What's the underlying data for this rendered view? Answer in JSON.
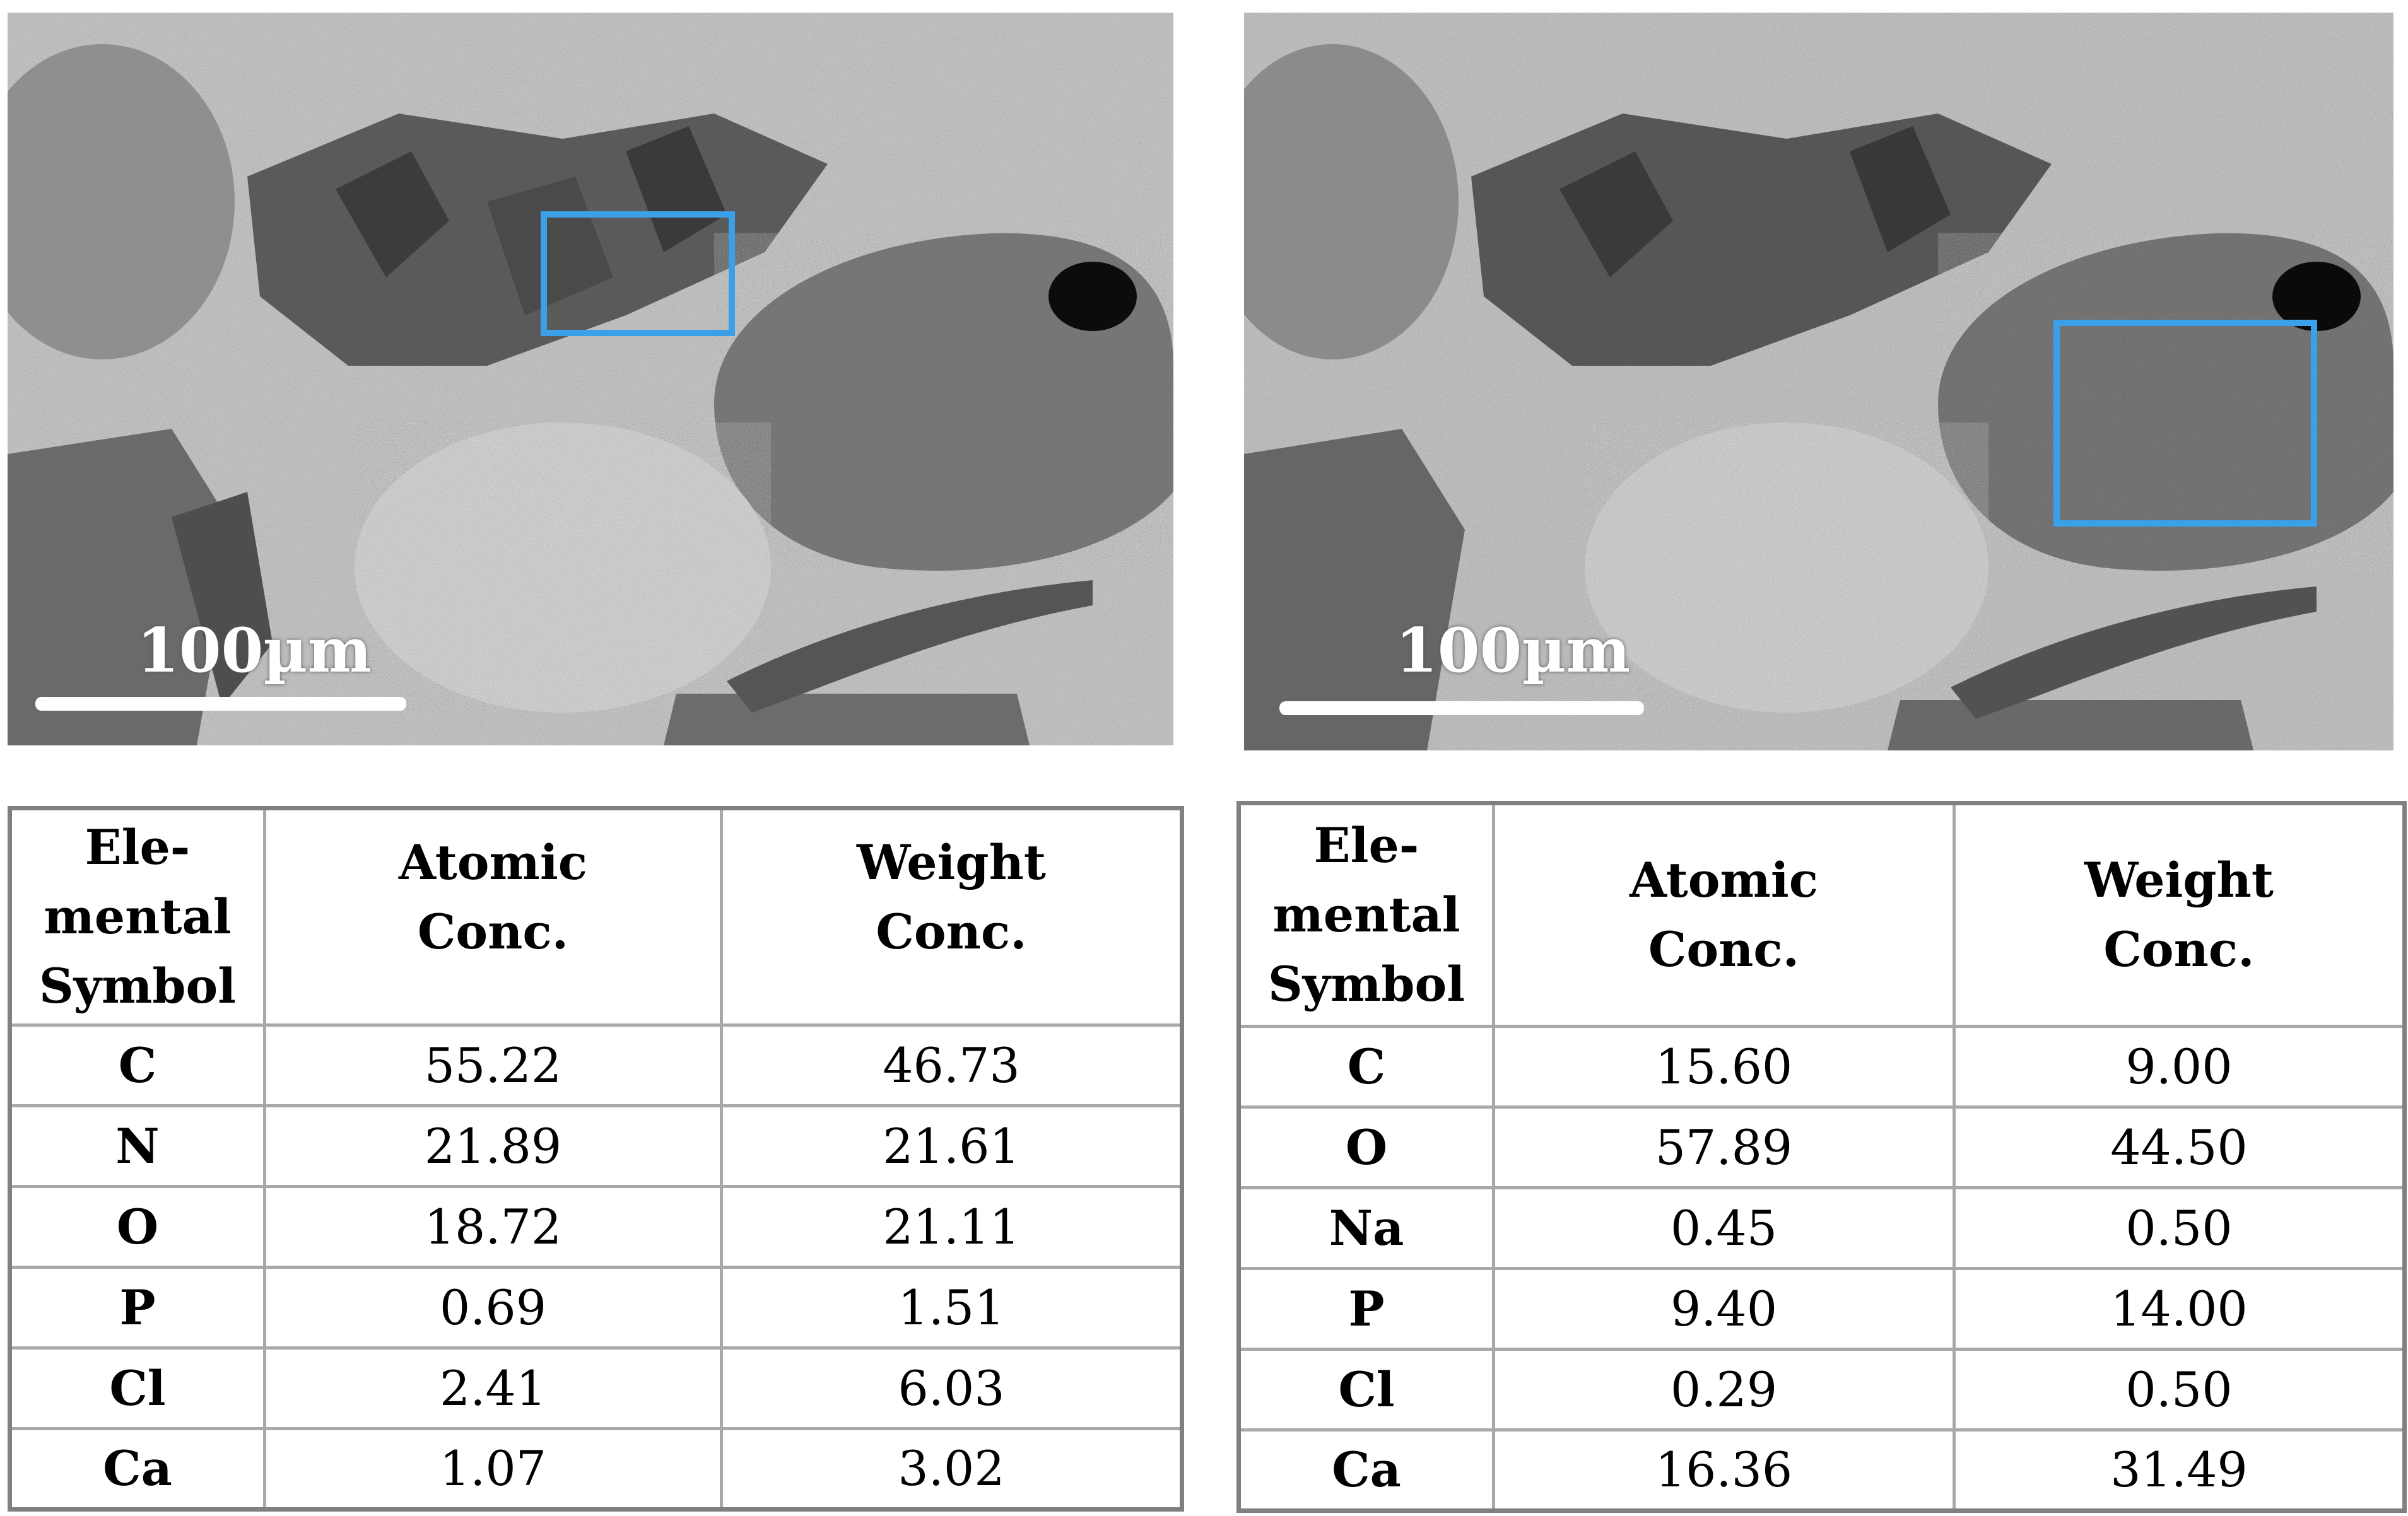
{
  "panels": [
    {
      "id": "left",
      "scale_bar_label": "100µm",
      "accent_color": "#3aa0e8",
      "table": {
        "header": {
          "symbol": [
            "Ele-",
            "mental",
            "Symbol"
          ],
          "atomic": [
            "Atomic",
            "Conc."
          ],
          "weight": [
            "Weight",
            "Conc."
          ]
        },
        "rows": [
          {
            "symbol": "C",
            "atomic": "55.22",
            "weight": "46.73"
          },
          {
            "symbol": "N",
            "atomic": "21.89",
            "weight": "21.61"
          },
          {
            "symbol": "O",
            "atomic": "18.72",
            "weight": "21.11"
          },
          {
            "symbol": "P",
            "atomic": "0.69",
            "weight": "1.51"
          },
          {
            "symbol": "Cl",
            "atomic": "2.41",
            "weight": "6.03"
          },
          {
            "symbol": "Ca",
            "atomic": "1.07",
            "weight": "3.02"
          }
        ]
      }
    },
    {
      "id": "right",
      "scale_bar_label": "100µm",
      "accent_color": "#3aa0e8",
      "table": {
        "header": {
          "symbol": [
            "Ele-",
            "mental",
            "Symbol"
          ],
          "atomic": [
            "Atomic",
            "Conc."
          ],
          "weight": [
            "Weight",
            "Conc."
          ]
        },
        "rows": [
          {
            "symbol": "C",
            "atomic": "15.60",
            "weight": "9.00"
          },
          {
            "symbol": "O",
            "atomic": "57.89",
            "weight": "44.50"
          },
          {
            "symbol": "Na",
            "atomic": "0.45",
            "weight": "0.50"
          },
          {
            "symbol": "P",
            "atomic": "9.40",
            "weight": "14.00"
          },
          {
            "symbol": "Cl",
            "atomic": "0.29",
            "weight": "0.50"
          },
          {
            "symbol": "Ca",
            "atomic": "16.36",
            "weight": "31.49"
          }
        ]
      }
    }
  ]
}
